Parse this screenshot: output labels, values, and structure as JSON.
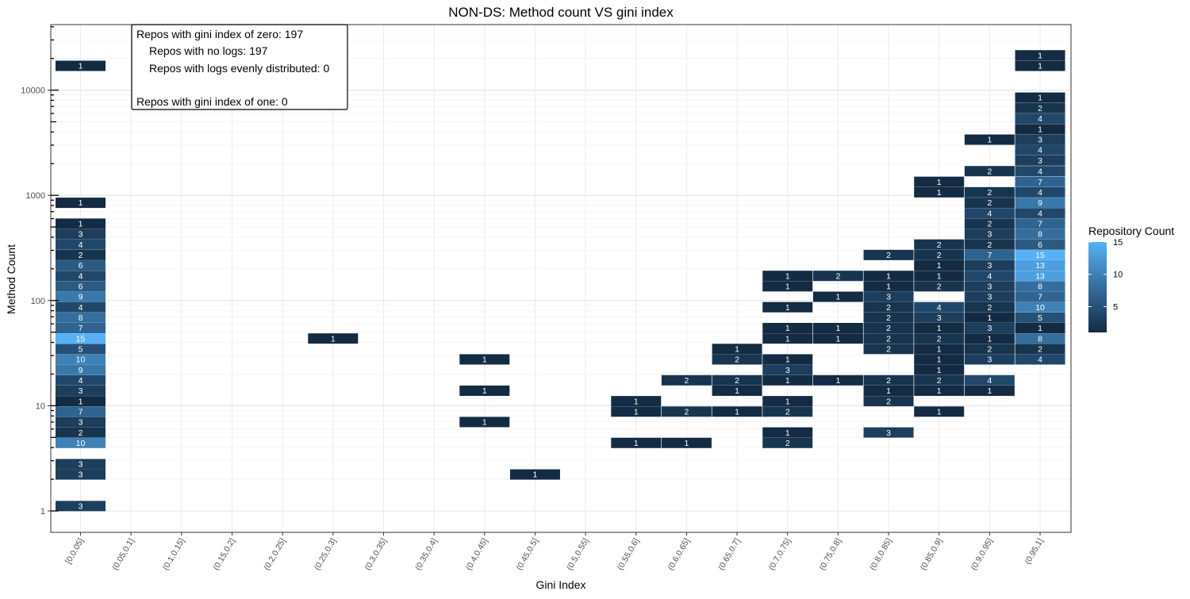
{
  "chart_data": {
    "type": "heatmap",
    "title": "NON-DS: Method count VS gini index",
    "xlabel": "Gini Index",
    "ylabel": "Method Count",
    "y_scale": "log10",
    "grid": true,
    "x_categories": [
      "[0,0.05]",
      "(0.05,0.1]",
      "(0.1,0.15]",
      "(0.15,0.2]",
      "(0.2,0.25]",
      "(0.25,0.3]",
      "(0.3,0.35]",
      "(0.35,0.4]",
      "(0.4,0.45]",
      "(0.45,0.5]",
      "(0.5,0.55]",
      "(0.55,0.6]",
      "(0.6,0.65]",
      "(0.65,0.7]",
      "(0.7,0.75]",
      "(0.75,0.8]",
      "(0.8,0.85]",
      "(0.85,0.9]",
      "(0.9,0.95]",
      "(0.95,1]"
    ],
    "y_ticks": [
      1,
      10,
      100,
      1000,
      10000
    ],
    "y_tick_labels": [
      "1",
      "10",
      "100",
      "1000",
      "10000"
    ],
    "legend": {
      "title": "Repository Count",
      "placement": "right",
      "ticks": [
        5,
        10,
        15
      ],
      "tick_labels": [
        "5",
        "10",
        "15"
      ],
      "range": [
        1,
        15
      ],
      "color_low": "#132B43",
      "color_high": "#56B1F7"
    },
    "annotation": {
      "lines": [
        "Repos with gini index of zero: 197",
        "Repos with no logs: 197",
        "Repos with logs evenly distributed: 0",
        "",
        "Repos with gini index of one: 0"
      ]
    },
    "cells": [
      {
        "x": 0,
        "y": 1.116,
        "v": 3
      },
      {
        "x": 0,
        "y": 2.226,
        "v": 3
      },
      {
        "x": 0,
        "y": 2.794,
        "v": 3
      },
      {
        "x": 0,
        "y": 4.443,
        "v": 10
      },
      {
        "x": 0,
        "y": 5.584,
        "v": 2
      },
      {
        "x": 0,
        "y": 7.018,
        "v": 3
      },
      {
        "x": 0,
        "y": 8.819,
        "v": 7
      },
      {
        "x": 0,
        "y": 11.08,
        "v": 1
      },
      {
        "x": 0,
        "y": 13.93,
        "v": 3
      },
      {
        "x": 0,
        "y": 17.51,
        "v": 4
      },
      {
        "x": 0,
        "y": 22.0,
        "v": 9
      },
      {
        "x": 0,
        "y": 27.65,
        "v": 10
      },
      {
        "x": 0,
        "y": 34.75,
        "v": 5
      },
      {
        "x": 0,
        "y": 43.67,
        "v": 15
      },
      {
        "x": 0,
        "y": 54.88,
        "v": 7
      },
      {
        "x": 0,
        "y": 68.97,
        "v": 8
      },
      {
        "x": 0,
        "y": 86.68,
        "v": 4
      },
      {
        "x": 0,
        "y": 108.9,
        "v": 9
      },
      {
        "x": 0,
        "y": 136.9,
        "v": 6
      },
      {
        "x": 0,
        "y": 172.0,
        "v": 4
      },
      {
        "x": 0,
        "y": 216.2,
        "v": 6
      },
      {
        "x": 0,
        "y": 271.7,
        "v": 2
      },
      {
        "x": 0,
        "y": 341.5,
        "v": 4
      },
      {
        "x": 0,
        "y": 429.1,
        "v": 3
      },
      {
        "x": 0,
        "y": 539.3,
        "v": 1
      },
      {
        "x": 0,
        "y": 851.7,
        "v": 1
      },
      {
        "x": 0,
        "y": 17060,
        "v": 1
      },
      {
        "x": 5,
        "y": 43.67,
        "v": 1
      },
      {
        "x": 8,
        "y": 7.018,
        "v": 1
      },
      {
        "x": 8,
        "y": 13.93,
        "v": 1
      },
      {
        "x": 8,
        "y": 27.65,
        "v": 1
      },
      {
        "x": 9,
        "y": 2.226,
        "v": 1
      },
      {
        "x": 11,
        "y": 4.443,
        "v": 1
      },
      {
        "x": 11,
        "y": 8.819,
        "v": 1
      },
      {
        "x": 11,
        "y": 11.08,
        "v": 1
      },
      {
        "x": 12,
        "y": 4.443,
        "v": 1
      },
      {
        "x": 12,
        "y": 8.819,
        "v": 2
      },
      {
        "x": 12,
        "y": 17.51,
        "v": 2
      },
      {
        "x": 13,
        "y": 8.819,
        "v": 1
      },
      {
        "x": 13,
        "y": 13.93,
        "v": 1
      },
      {
        "x": 13,
        "y": 17.51,
        "v": 2
      },
      {
        "x": 13,
        "y": 27.65,
        "v": 2
      },
      {
        "x": 13,
        "y": 34.75,
        "v": 1
      },
      {
        "x": 14,
        "y": 4.443,
        "v": 2
      },
      {
        "x": 14,
        "y": 5.584,
        "v": 1
      },
      {
        "x": 14,
        "y": 8.819,
        "v": 2
      },
      {
        "x": 14,
        "y": 11.08,
        "v": 1
      },
      {
        "x": 14,
        "y": 17.51,
        "v": 1
      },
      {
        "x": 14,
        "y": 22.0,
        "v": 3
      },
      {
        "x": 14,
        "y": 27.65,
        "v": 1
      },
      {
        "x": 14,
        "y": 43.67,
        "v": 1
      },
      {
        "x": 14,
        "y": 54.88,
        "v": 1
      },
      {
        "x": 14,
        "y": 86.68,
        "v": 1
      },
      {
        "x": 14,
        "y": 136.9,
        "v": 1
      },
      {
        "x": 14,
        "y": 172.0,
        "v": 1
      },
      {
        "x": 15,
        "y": 17.51,
        "v": 1
      },
      {
        "x": 15,
        "y": 43.67,
        "v": 1
      },
      {
        "x": 15,
        "y": 54.88,
        "v": 1
      },
      {
        "x": 15,
        "y": 108.9,
        "v": 1
      },
      {
        "x": 15,
        "y": 172.0,
        "v": 2
      },
      {
        "x": 16,
        "y": 5.584,
        "v": 3
      },
      {
        "x": 16,
        "y": 11.08,
        "v": 2
      },
      {
        "x": 16,
        "y": 13.93,
        "v": 1
      },
      {
        "x": 16,
        "y": 17.51,
        "v": 2
      },
      {
        "x": 16,
        "y": 34.75,
        "v": 2
      },
      {
        "x": 16,
        "y": 43.67,
        "v": 2
      },
      {
        "x": 16,
        "y": 54.88,
        "v": 2
      },
      {
        "x": 16,
        "y": 68.97,
        "v": 2
      },
      {
        "x": 16,
        "y": 86.68,
        "v": 2
      },
      {
        "x": 16,
        "y": 108.9,
        "v": 3
      },
      {
        "x": 16,
        "y": 136.9,
        "v": 1
      },
      {
        "x": 16,
        "y": 172.0,
        "v": 1
      },
      {
        "x": 16,
        "y": 271.7,
        "v": 2
      },
      {
        "x": 17,
        "y": 8.819,
        "v": 1
      },
      {
        "x": 17,
        "y": 13.93,
        "v": 1
      },
      {
        "x": 17,
        "y": 17.51,
        "v": 2
      },
      {
        "x": 17,
        "y": 22.0,
        "v": 1
      },
      {
        "x": 17,
        "y": 27.65,
        "v": 1
      },
      {
        "x": 17,
        "y": 34.75,
        "v": 1
      },
      {
        "x": 17,
        "y": 43.67,
        "v": 2
      },
      {
        "x": 17,
        "y": 54.88,
        "v": 1
      },
      {
        "x": 17,
        "y": 68.97,
        "v": 3
      },
      {
        "x": 17,
        "y": 86.68,
        "v": 4
      },
      {
        "x": 17,
        "y": 136.9,
        "v": 2
      },
      {
        "x": 17,
        "y": 172.0,
        "v": 1
      },
      {
        "x": 17,
        "y": 216.2,
        "v": 1
      },
      {
        "x": 17,
        "y": 271.7,
        "v": 2
      },
      {
        "x": 17,
        "y": 341.5,
        "v": 2
      },
      {
        "x": 17,
        "y": 1072,
        "v": 1
      },
      {
        "x": 17,
        "y": 1348,
        "v": 1
      },
      {
        "x": 18,
        "y": 13.93,
        "v": 1
      },
      {
        "x": 18,
        "y": 17.51,
        "v": 4
      },
      {
        "x": 18,
        "y": 27.65,
        "v": 3
      },
      {
        "x": 18,
        "y": 34.75,
        "v": 2
      },
      {
        "x": 18,
        "y": 43.67,
        "v": 1
      },
      {
        "x": 18,
        "y": 54.88,
        "v": 3
      },
      {
        "x": 18,
        "y": 68.97,
        "v": 1
      },
      {
        "x": 18,
        "y": 86.68,
        "v": 2
      },
      {
        "x": 18,
        "y": 108.9,
        "v": 3
      },
      {
        "x": 18,
        "y": 136.9,
        "v": 3
      },
      {
        "x": 18,
        "y": 172.0,
        "v": 4
      },
      {
        "x": 18,
        "y": 216.2,
        "v": 3
      },
      {
        "x": 18,
        "y": 271.7,
        "v": 7
      },
      {
        "x": 18,
        "y": 341.5,
        "v": 2
      },
      {
        "x": 18,
        "y": 429.1,
        "v": 3
      },
      {
        "x": 18,
        "y": 539.3,
        "v": 2
      },
      {
        "x": 18,
        "y": 677.8,
        "v": 4
      },
      {
        "x": 18,
        "y": 851.7,
        "v": 2
      },
      {
        "x": 18,
        "y": 1072,
        "v": 2
      },
      {
        "x": 18,
        "y": 1702,
        "v": 2
      },
      {
        "x": 18,
        "y": 3392,
        "v": 1
      },
      {
        "x": 19,
        "y": 27.65,
        "v": 4
      },
      {
        "x": 19,
        "y": 34.75,
        "v": 2
      },
      {
        "x": 19,
        "y": 43.67,
        "v": 8
      },
      {
        "x": 19,
        "y": 54.88,
        "v": 1
      },
      {
        "x": 19,
        "y": 68.97,
        "v": 5
      },
      {
        "x": 19,
        "y": 86.68,
        "v": 10
      },
      {
        "x": 19,
        "y": 108.9,
        "v": 7
      },
      {
        "x": 19,
        "y": 136.9,
        "v": 8
      },
      {
        "x": 19,
        "y": 172.0,
        "v": 13
      },
      {
        "x": 19,
        "y": 216.2,
        "v": 13
      },
      {
        "x": 19,
        "y": 271.7,
        "v": 15
      },
      {
        "x": 19,
        "y": 341.5,
        "v": 6
      },
      {
        "x": 19,
        "y": 429.1,
        "v": 8
      },
      {
        "x": 19,
        "y": 539.3,
        "v": 7
      },
      {
        "x": 19,
        "y": 677.8,
        "v": 4
      },
      {
        "x": 19,
        "y": 851.7,
        "v": 9
      },
      {
        "x": 19,
        "y": 1072,
        "v": 4
      },
      {
        "x": 19,
        "y": 1348,
        "v": 7
      },
      {
        "x": 19,
        "y": 1702,
        "v": 4
      },
      {
        "x": 19,
        "y": 2149,
        "v": 3
      },
      {
        "x": 19,
        "y": 2703,
        "v": 4
      },
      {
        "x": 19,
        "y": 3392,
        "v": 3
      },
      {
        "x": 19,
        "y": 4268,
        "v": 1
      },
      {
        "x": 19,
        "y": 5370,
        "v": 4
      },
      {
        "x": 19,
        "y": 6761,
        "v": 2
      },
      {
        "x": 19,
        "y": 8511,
        "v": 1
      },
      {
        "x": 19,
        "y": 17060,
        "v": 1
      },
      {
        "x": 19,
        "y": 21480,
        "v": 1
      }
    ]
  }
}
